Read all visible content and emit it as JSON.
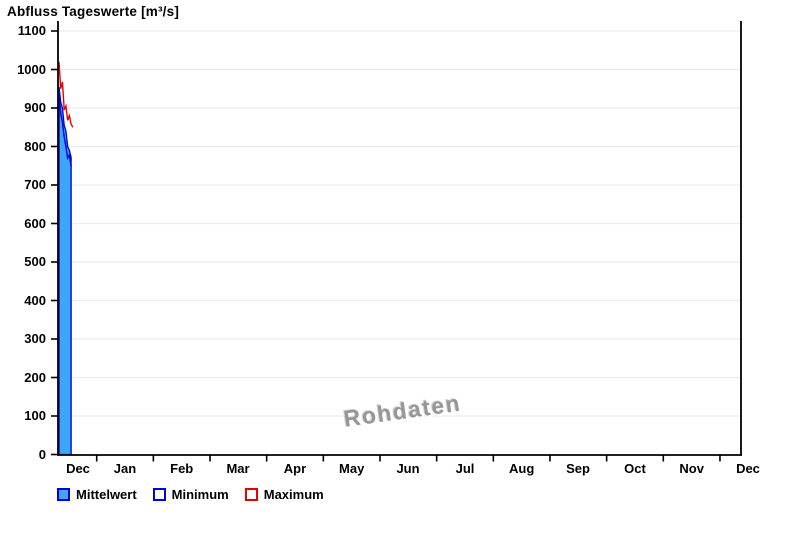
{
  "chart": {
    "title": "Abfluss Tageswerte [m³/s]",
    "watermark": "Rohdaten"
  },
  "legend": {
    "items": [
      {
        "label": "Mittelwert",
        "swatch": "filled",
        "fill": "#3EA6F6",
        "border": "#0000C8"
      },
      {
        "label": "Minimum",
        "swatch": "outline",
        "fill": "#FFFFFF",
        "border": "#0000E0"
      },
      {
        "label": "Maximum",
        "swatch": "outline",
        "fill": "#FFFFFF",
        "border": "#E60000"
      }
    ]
  },
  "chart_data": {
    "type": "area",
    "title": "Abfluss Tageswerte [m³/s]",
    "xlabel": "",
    "ylabel": "m³/s",
    "ylim": [
      0,
      1130
    ],
    "y_ticks": [
      0,
      100,
      200,
      300,
      400,
      500,
      600,
      700,
      800,
      900,
      1000,
      1100
    ],
    "x_axis_months": [
      "Dec",
      "Jan",
      "Feb",
      "Mar",
      "Apr",
      "May",
      "Jun",
      "Jul",
      "Aug",
      "Sep",
      "Oct",
      "Nov",
      "Dec"
    ],
    "grid": "horizontal-only",
    "grid_color": "#ECECEC",
    "legend_position": "bottom-left",
    "series": [
      {
        "name": "Mittelwert",
        "type": "area",
        "fill": "#3EA6F6",
        "stroke": "#0000C8",
        "day": [
          1,
          2,
          3,
          4,
          5,
          6,
          7,
          8
        ],
        "values": [
          955,
          915,
          900,
          855,
          840,
          800,
          790,
          772
        ]
      },
      {
        "name": "Minimum",
        "type": "line",
        "color": "#0000E0",
        "day": [
          1,
          2,
          3,
          4,
          5,
          6,
          7,
          8
        ],
        "values": [
          935,
          885,
          862,
          825,
          800,
          770,
          778,
          748
        ]
      },
      {
        "name": "Maximum",
        "type": "line",
        "color": "#E60000",
        "day": [
          1,
          2,
          3,
          4,
          5,
          6,
          7,
          8,
          9
        ],
        "values": [
          1020,
          950,
          968,
          895,
          905,
          868,
          880,
          858,
          850
        ]
      }
    ]
  }
}
